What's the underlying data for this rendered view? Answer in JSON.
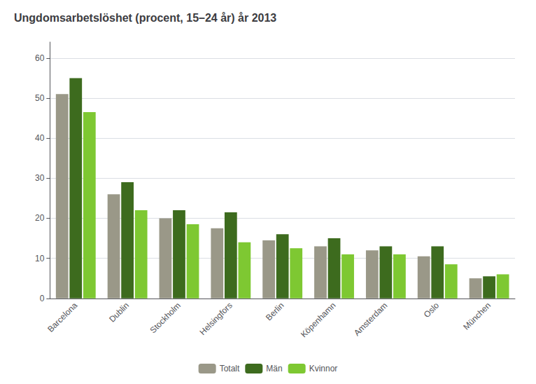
{
  "chart_data": {
    "type": "bar",
    "title": "Ungdomsarbetslöshet (procent, 15–24 år) år 2013",
    "categories": [
      "Barcelona",
      "Dublin",
      "Stockholm",
      "Helsingfors",
      "Berlin",
      "Köpenhamn",
      "Amsterdam",
      "Oslo",
      "München"
    ],
    "series": [
      {
        "name": "Totalt",
        "color": "#9a9888",
        "values": [
          51,
          26,
          20,
          17.5,
          14.5,
          13,
          12,
          10.5,
          5
        ]
      },
      {
        "name": "Män",
        "color": "#3d6b1e",
        "values": [
          55,
          29,
          22,
          21.5,
          16,
          15,
          13,
          13,
          5.5
        ]
      },
      {
        "name": "Kvinnor",
        "color": "#7ec832",
        "values": [
          46.5,
          22,
          18.5,
          14,
          12.5,
          11,
          11,
          8.5,
          6
        ]
      }
    ],
    "ylim": [
      0,
      64
    ],
    "yticks": [
      0,
      10,
      20,
      30,
      40,
      50,
      60
    ],
    "grid": true,
    "legend": "bottom"
  }
}
